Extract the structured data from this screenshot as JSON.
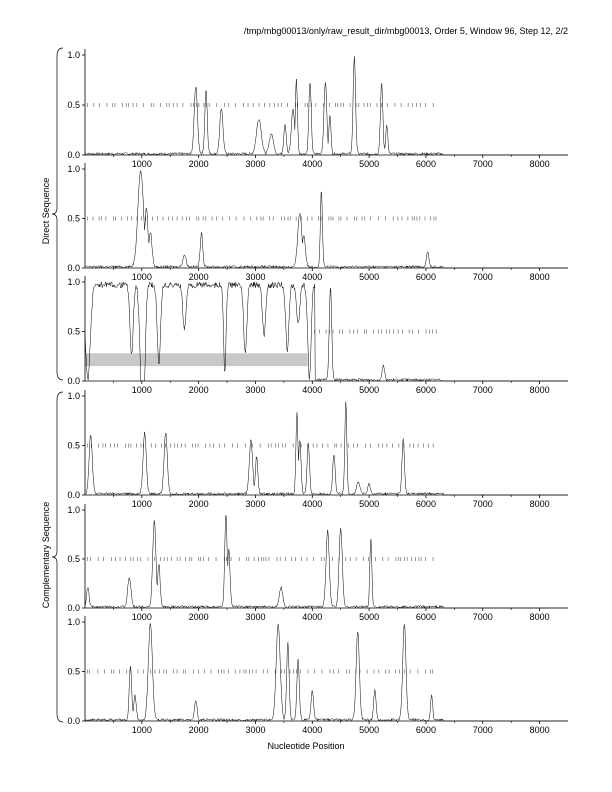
{
  "title": "/tmp/mbg00013/only/raw_result_dir/mbg00013, Order 5, Window 96, Step 12, 2/2",
  "xlabel": "Nucleotide Position",
  "group_labels": {
    "direct": "Direct Sequence",
    "complementary": "Complementary Sequence"
  },
  "colors": {
    "line": "#000000",
    "tick": "#555555",
    "highlight": "#c8c8c8"
  },
  "chart_data": [
    {
      "type": "line",
      "group": "Direct Sequence",
      "xlim": [
        0,
        8500
      ],
      "ylim": [
        0,
        1
      ],
      "xticks": [
        1000,
        2000,
        3000,
        4000,
        5000,
        6000,
        7000,
        8000
      ],
      "yticks": [
        0.0,
        0.5,
        1.0
      ],
      "ytick_labels": [
        "0.0",
        "0.5",
        "1.0"
      ],
      "peaks": [
        [
          1950,
          0.68,
          40
        ],
        [
          2130,
          0.65,
          30
        ],
        [
          2400,
          0.45,
          40
        ],
        [
          3060,
          0.35,
          60
        ],
        [
          3280,
          0.2,
          50
        ],
        [
          3520,
          0.3,
          30
        ],
        [
          3660,
          0.45,
          40
        ],
        [
          3720,
          0.75,
          25
        ],
        [
          3960,
          0.72,
          30
        ],
        [
          4230,
          0.72,
          35
        ],
        [
          4310,
          0.4,
          25
        ],
        [
          4740,
          0.98,
          30
        ],
        [
          5220,
          0.7,
          30
        ],
        [
          5310,
          0.3,
          25
        ]
      ],
      "marks_y": 0.5,
      "marks_range": [
        0,
        6200
      ]
    },
    {
      "type": "line",
      "group": "Direct Sequence",
      "xlim": [
        0,
        8500
      ],
      "ylim": [
        0,
        1
      ],
      "xticks": [
        1000,
        2000,
        3000,
        4000,
        5000,
        6000,
        7000,
        8000
      ],
      "yticks": [
        0.0,
        0.5,
        1.0
      ],
      "ytick_labels": [
        "0.0",
        "0.5",
        "1.0"
      ],
      "peaks": [
        [
          980,
          0.97,
          70
        ],
        [
          1080,
          0.6,
          40
        ],
        [
          1150,
          0.35,
          40
        ],
        [
          1750,
          0.12,
          40
        ],
        [
          2050,
          0.35,
          30
        ],
        [
          3780,
          0.55,
          50
        ],
        [
          3850,
          0.32,
          40
        ],
        [
          4160,
          0.78,
          25
        ],
        [
          6030,
          0.15,
          30
        ]
      ],
      "marks_y": 0.5,
      "marks_range": [
        0,
        6200
      ]
    },
    {
      "type": "line",
      "group": "Direct Sequence",
      "xlim": [
        0,
        8500
      ],
      "ylim": [
        0,
        1
      ],
      "xticks": [
        1000,
        2000,
        3000,
        4000,
        5000,
        6000,
        7000,
        8000
      ],
      "yticks": [
        0.0,
        0.5,
        1.0
      ],
      "ytick_labels": [
        "0.0",
        "0.5",
        "1.0"
      ],
      "peaks": [
        [
          4320,
          0.95,
          30
        ],
        [
          5250,
          0.15,
          30
        ]
      ],
      "dips": [
        [
          50,
          0.05,
          60
        ],
        [
          820,
          0.3,
          40
        ],
        [
          1000,
          0.1,
          50
        ],
        [
          1030,
          0.05,
          40
        ],
        [
          1300,
          0.2,
          40
        ],
        [
          1750,
          0.55,
          40
        ],
        [
          2460,
          0.1,
          30
        ],
        [
          2820,
          0.3,
          40
        ],
        [
          3150,
          0.5,
          40
        ],
        [
          3560,
          0.35,
          40
        ],
        [
          3750,
          0.6,
          40
        ],
        [
          3950,
          0.05,
          40
        ]
      ],
      "band": [
        0,
        3920,
        0.15,
        0.28
      ],
      "marks_y": 0.5,
      "marks_range": [
        4000,
        6200
      ]
    },
    {
      "type": "line",
      "group": "Complementary Sequence",
      "xlim": [
        0,
        8500
      ],
      "ylim": [
        0,
        1
      ],
      "xticks": [
        1000,
        2000,
        3000,
        4000,
        5000,
        6000,
        7000,
        8000
      ],
      "yticks": [
        0.0,
        0.5,
        1.0
      ],
      "ytick_labels": [
        "0.0",
        "0.5",
        "1.0"
      ],
      "peaks": [
        [
          100,
          0.6,
          40
        ],
        [
          1050,
          0.62,
          40
        ],
        [
          1420,
          0.62,
          40
        ],
        [
          2920,
          0.55,
          40
        ],
        [
          3020,
          0.38,
          30
        ],
        [
          3730,
          0.82,
          25
        ],
        [
          3780,
          0.55,
          30
        ],
        [
          3930,
          0.5,
          30
        ],
        [
          4380,
          0.4,
          30
        ],
        [
          4590,
          0.92,
          25
        ],
        [
          4810,
          0.12,
          40
        ],
        [
          5000,
          0.1,
          30
        ],
        [
          5600,
          0.55,
          30
        ]
      ],
      "marks_y": 0.5,
      "marks_range": [
        0,
        6200
      ]
    },
    {
      "type": "line",
      "group": "Complementary Sequence",
      "xlim": [
        0,
        8500
      ],
      "ylim": [
        0,
        1
      ],
      "xticks": [
        1000,
        2000,
        3000,
        4000,
        5000,
        6000,
        7000,
        8000
      ],
      "yticks": [
        0.0,
        0.5,
        1.0
      ],
      "ytick_labels": [
        "0.0",
        "0.5",
        "1.0"
      ],
      "peaks": [
        [
          50,
          0.2,
          30
        ],
        [
          780,
          0.3,
          40
        ],
        [
          1220,
          0.88,
          40
        ],
        [
          1300,
          0.45,
          30
        ],
        [
          2480,
          0.95,
          30
        ],
        [
          2530,
          0.6,
          30
        ],
        [
          3450,
          0.2,
          40
        ],
        [
          4270,
          0.78,
          40
        ],
        [
          4500,
          0.8,
          40
        ],
        [
          5030,
          0.7,
          25
        ]
      ],
      "marks_y": 0.5,
      "marks_range": [
        0,
        6200
      ]
    },
    {
      "type": "line",
      "group": "Complementary Sequence",
      "xlim": [
        0,
        8500
      ],
      "ylim": [
        0,
        1
      ],
      "xticks": [
        1000,
        2000,
        3000,
        4000,
        5000,
        6000,
        7000,
        8000
      ],
      "yticks": [
        0.0,
        0.5,
        1.0
      ],
      "ytick_labels": [
        "0.0",
        "0.5",
        "1.0"
      ],
      "peaks": [
        [
          800,
          0.55,
          30
        ],
        [
          880,
          0.25,
          30
        ],
        [
          1150,
          0.98,
          50
        ],
        [
          1950,
          0.2,
          30
        ],
        [
          3400,
          0.97,
          50
        ],
        [
          3570,
          0.78,
          30
        ],
        [
          3750,
          0.6,
          30
        ],
        [
          4000,
          0.3,
          30
        ],
        [
          4800,
          0.9,
          40
        ],
        [
          5100,
          0.3,
          30
        ],
        [
          5620,
          0.97,
          40
        ],
        [
          6100,
          0.25,
          25
        ]
      ],
      "marks_y": 0.5,
      "marks_range": [
        0,
        6200
      ]
    }
  ]
}
